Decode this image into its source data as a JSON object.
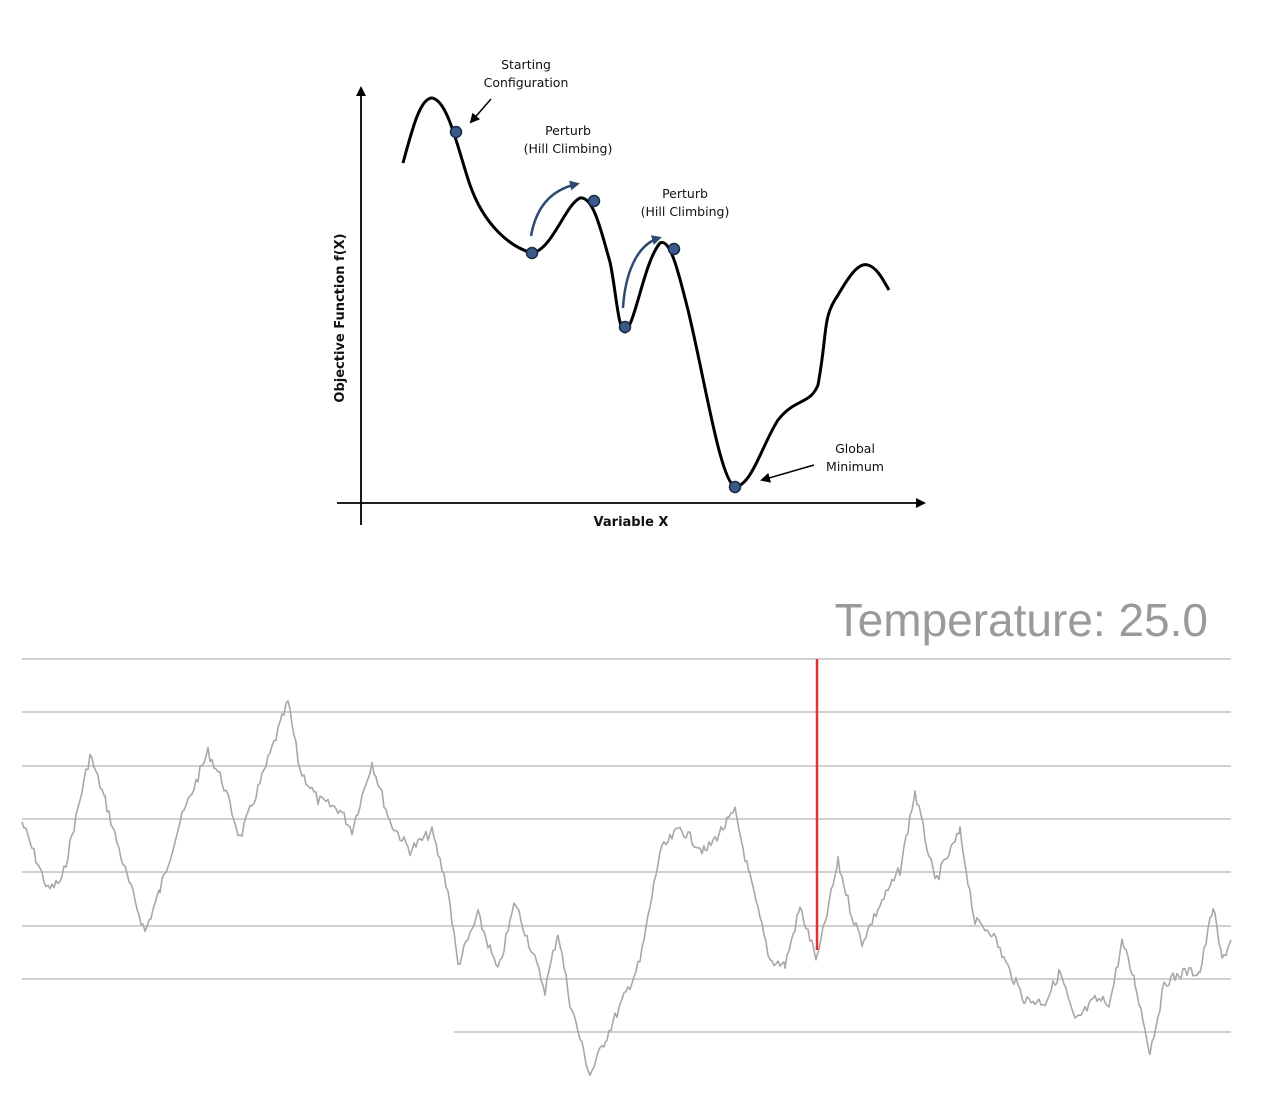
{
  "diagram": {
    "y_axis_label": "Objective Function f(X)",
    "x_axis_label": "Variable X",
    "annotations": {
      "start_line1": "Starting",
      "start_line2": "Configuration",
      "perturb1_line1": "Perturb",
      "perturb1_line2": "(Hill Climbing)",
      "perturb2_line1": "Perturb",
      "perturb2_line2": "(Hill Climbing)",
      "global_line1": "Global",
      "global_line2": "Minimum"
    },
    "colors": {
      "curve": "#000000",
      "points": "#3a5a8c",
      "arrows": "#2f4a70"
    }
  },
  "annealing_panel": {
    "temperature_label": "Temperature: 25.0",
    "colors": {
      "trace": "#a8a8a8",
      "gridline": "#d0d0d0",
      "marker": "#e03030",
      "label": "#9a9a9a"
    }
  }
}
